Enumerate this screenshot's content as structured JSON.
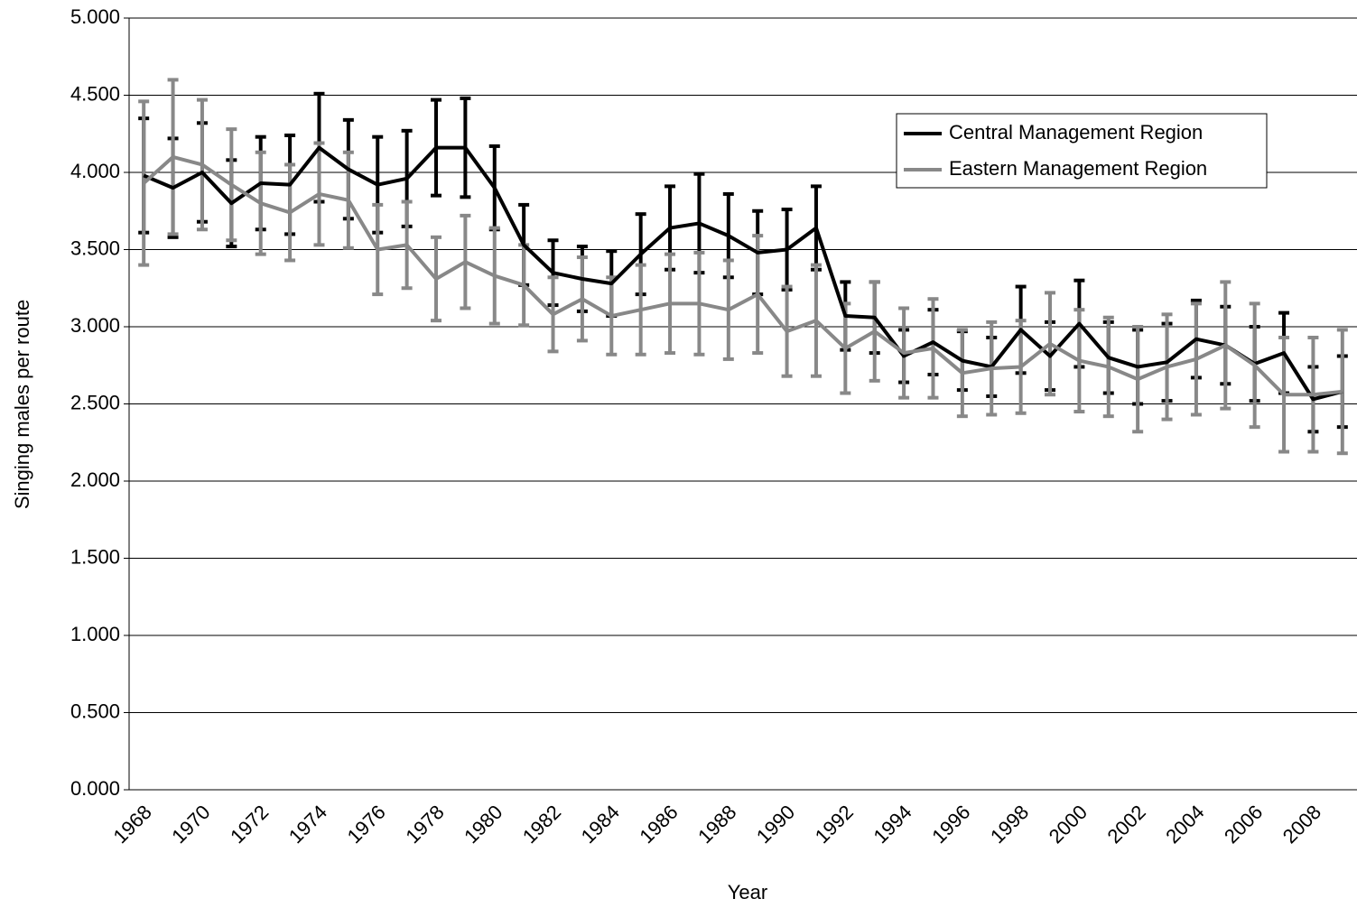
{
  "chart_data": {
    "type": "line",
    "x_label": "Year",
    "y_label": "Singing males per route",
    "categories": [
      "1968",
      null,
      "1970",
      null,
      "1972",
      null,
      "1974",
      null,
      "1976",
      null,
      "1978",
      null,
      "1980",
      null,
      "1982",
      null,
      "1984",
      null,
      "1986",
      null,
      "1988",
      null,
      "1990",
      null,
      "1992",
      null,
      "1994",
      null,
      "1996",
      null,
      "1998",
      null,
      "2000",
      null,
      "2002",
      null,
      "2004",
      null,
      "2006",
      null,
      "2008",
      null
    ],
    "ylim": [
      0,
      5
    ],
    "yticks": [
      {
        "value": 0,
        "label": "0.000"
      },
      {
        "value": 0.5,
        "label": "0.500"
      },
      {
        "value": 1,
        "label": "1.000"
      },
      {
        "value": 1.5,
        "label": "1.500"
      },
      {
        "value": 2,
        "label": "2.000"
      },
      {
        "value": 2.5,
        "label": "2.500"
      },
      {
        "value": 3,
        "label": "3.000"
      },
      {
        "value": 3.5,
        "label": "3.500"
      },
      {
        "value": 4,
        "label": "4.000"
      },
      {
        "value": 4.5,
        "label": "4.500"
      },
      {
        "value": 5,
        "label": "5.000"
      }
    ],
    "grid": true,
    "legend": "upper right",
    "series": [
      {
        "name": "Central Management Region",
        "color": "#000000",
        "values": [
          3.98,
          3.9,
          4.0,
          3.8,
          3.93,
          3.92,
          4.16,
          4.02,
          3.92,
          3.96,
          4.16,
          4.16,
          3.9,
          3.53,
          3.35,
          3.31,
          3.28,
          3.47,
          3.64,
          3.67,
          3.59,
          3.48,
          3.5,
          3.64,
          3.07,
          3.06,
          2.81,
          2.9,
          2.78,
          2.74,
          2.98,
          2.81,
          3.02,
          2.8,
          2.74,
          2.77,
          2.92,
          2.88,
          2.76,
          2.83,
          2.53,
          2.58
        ],
        "errors": [
          0.37,
          0.32,
          0.32,
          0.28,
          0.3,
          0.32,
          0.35,
          0.32,
          0.31,
          0.31,
          0.31,
          0.32,
          0.27,
          0.26,
          0.21,
          0.21,
          0.21,
          0.26,
          0.27,
          0.32,
          0.27,
          0.27,
          0.26,
          0.27,
          0.22,
          0.23,
          0.17,
          0.21,
          0.19,
          0.19,
          0.28,
          0.22,
          0.28,
          0.23,
          0.24,
          0.25,
          0.25,
          0.25,
          0.24,
          0.26,
          0.21,
          0.23
        ]
      },
      {
        "name": "Eastern Management Region",
        "color": "#888888",
        "values": [
          3.93,
          4.1,
          4.05,
          3.92,
          3.8,
          3.74,
          3.86,
          3.82,
          3.5,
          3.53,
          3.31,
          3.42,
          3.33,
          3.27,
          3.08,
          3.18,
          3.07,
          3.11,
          3.15,
          3.15,
          3.11,
          3.21,
          2.97,
          3.04,
          2.86,
          2.97,
          2.83,
          2.86,
          2.7,
          2.73,
          2.74,
          2.89,
          2.78,
          2.74,
          2.66,
          2.74,
          2.79,
          2.88,
          2.75,
          2.56,
          2.56,
          2.58
        ],
        "errors": [
          0.53,
          0.5,
          0.42,
          0.36,
          0.33,
          0.31,
          0.33,
          0.31,
          0.29,
          0.28,
          0.27,
          0.3,
          0.31,
          0.26,
          0.24,
          0.27,
          0.25,
          0.29,
          0.32,
          0.33,
          0.32,
          0.38,
          0.29,
          0.36,
          0.29,
          0.32,
          0.29,
          0.32,
          0.28,
          0.3,
          0.3,
          0.33,
          0.33,
          0.32,
          0.34,
          0.34,
          0.36,
          0.41,
          0.4,
          0.37,
          0.37,
          0.4
        ]
      }
    ]
  }
}
